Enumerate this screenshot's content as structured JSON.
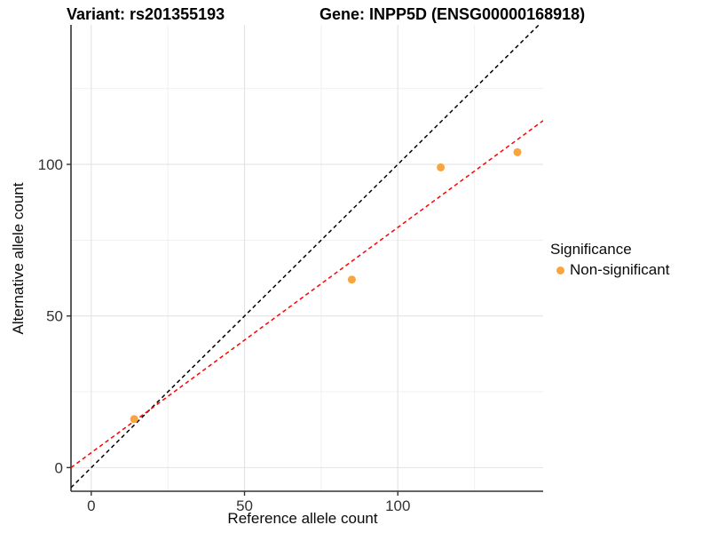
{
  "chart_data": {
    "type": "scatter",
    "title_variant": "Variant: rs201355193",
    "title_gene": "Gene: INPP5D (ENSG00000168918)",
    "xlabel": "Reference allele count",
    "ylabel": "Alternative allele count",
    "xlim": [
      -6.6,
      147.4
    ],
    "ylim": [
      -7.8,
      146
    ],
    "x_ticks": [
      0,
      50,
      100
    ],
    "y_ticks": [
      0,
      50,
      100
    ],
    "x_minor_ticks": [
      25,
      75,
      125
    ],
    "y_minor_ticks": [
      25,
      75,
      125
    ],
    "grid": true,
    "legend_position": "right",
    "series": [
      {
        "name": "Non-significant",
        "color": "#F9A43C",
        "points": [
          [
            14,
            16
          ],
          [
            85,
            62
          ],
          [
            114,
            99
          ],
          [
            139,
            104
          ]
        ]
      }
    ],
    "lines": [
      {
        "name": "identity-line",
        "slope": 1,
        "intercept": 0,
        "color": "#000000",
        "linetype": "dashed"
      },
      {
        "name": "regression-line",
        "slope": 0.743,
        "intercept": 4.9,
        "color": "#FF0000",
        "linetype": "dashed"
      }
    ],
    "legend": {
      "title": "Significance",
      "items": [
        {
          "label": "Non-significant",
          "color": "#F9A43C"
        }
      ]
    },
    "colors": {
      "axis": "#333333",
      "major_grid": "#E3E3E3",
      "minor_grid": "#F0F0F0"
    }
  }
}
